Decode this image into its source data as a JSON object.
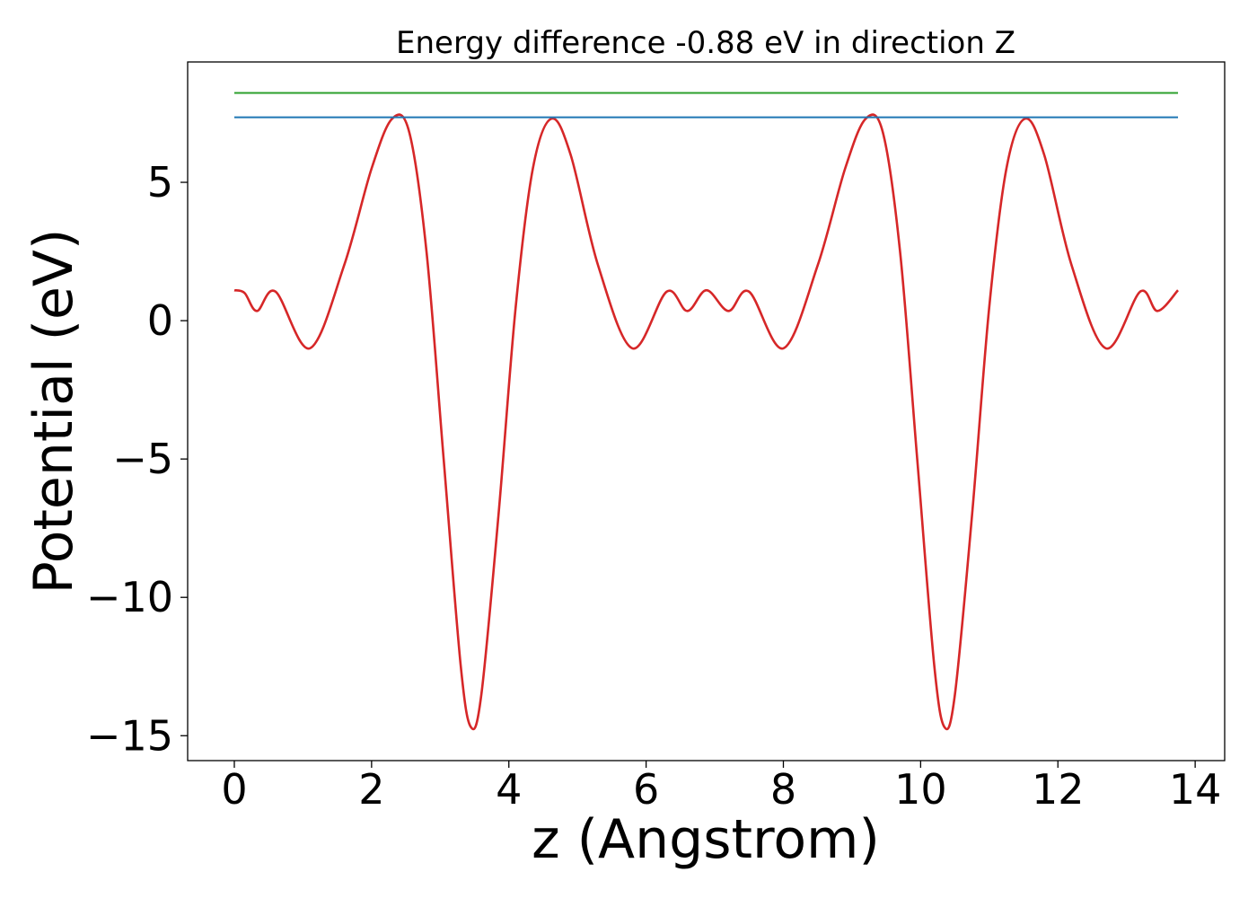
{
  "chart_data": {
    "type": "line",
    "title": "Energy difference -0.88 eV in direction Z",
    "xlabel": "z (Angstrom)",
    "ylabel": "Potential (eV)",
    "xlim": [
      -0.68,
      14.43
    ],
    "ylim": [
      -15.9,
      9.35
    ],
    "xticks": [
      0,
      2,
      4,
      6,
      8,
      10,
      12,
      14
    ],
    "xtick_labels": [
      "0",
      "2",
      "4",
      "6",
      "8",
      "10",
      "12",
      "14"
    ],
    "yticks": [
      5,
      0,
      -5,
      -10,
      -15
    ],
    "ytick_labels": [
      "5",
      "0",
      "−5",
      "−10",
      "−15"
    ],
    "grid": false,
    "series": [
      {
        "color": "#d62728",
        "x": [
          0.0,
          0.15,
          0.33,
          0.6,
          1.1,
          1.6,
          2.0,
          2.3,
          2.55,
          2.8,
          3.05,
          3.3,
          3.45,
          3.6,
          3.85,
          4.1,
          4.35,
          4.62,
          4.9,
          5.3,
          5.8,
          6.3,
          6.6,
          6.88,
          7.2,
          7.5,
          8.0,
          8.5,
          8.9,
          9.2,
          9.45,
          9.7,
          9.95,
          10.2,
          10.35,
          10.5,
          10.75,
          11.0,
          11.25,
          11.52,
          11.8,
          12.2,
          12.7,
          13.2,
          13.45,
          13.75
        ],
        "y": [
          1.1,
          1.0,
          0.35,
          1.05,
          -1.0,
          2.0,
          5.5,
          7.3,
          6.8,
          2.5,
          -5.0,
          -12.5,
          -14.7,
          -13.5,
          -7.0,
          0.5,
          5.5,
          7.3,
          6.0,
          2.0,
          -1.0,
          1.05,
          0.35,
          1.1,
          0.35,
          1.05,
          -1.0,
          2.0,
          5.5,
          7.3,
          6.8,
          2.5,
          -5.0,
          -12.5,
          -14.7,
          -13.5,
          -7.0,
          0.5,
          5.5,
          7.3,
          6.0,
          2.0,
          -1.0,
          1.05,
          0.35,
          1.1
        ]
      },
      {
        "color": "#1f77b4",
        "x": [
          0.0,
          13.75
        ],
        "y": [
          7.35,
          7.35
        ]
      },
      {
        "color": "#2ca02c",
        "x": [
          0.0,
          13.75
        ],
        "y": [
          8.23,
          8.23
        ]
      }
    ]
  }
}
